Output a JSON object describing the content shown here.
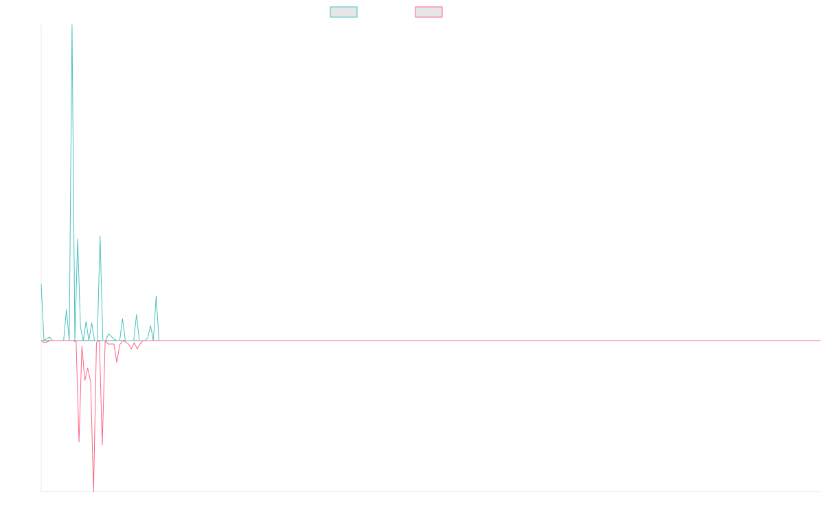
{
  "chart_data": {
    "type": "line",
    "title": "",
    "xlabel": "",
    "ylabel": "",
    "ylim": [
      -220,
      460
    ],
    "grid": false,
    "legend_placement": "top-center",
    "series": [
      {
        "color": "#4bc0c0",
        "fill": "#e6e6e6",
        "values": [
          82,
          0,
          3,
          5,
          0,
          0,
          0,
          0,
          0,
          45,
          0,
          460,
          0,
          148,
          20,
          0,
          28,
          0,
          26,
          0,
          0,
          152,
          0,
          0,
          10,
          6,
          2,
          0,
          0,
          32,
          0,
          0,
          0,
          0,
          38,
          0,
          0,
          0,
          4,
          22,
          0,
          65,
          0,
          0,
          0,
          0,
          0,
          0,
          0,
          0,
          0,
          0,
          0,
          0,
          0,
          0,
          0,
          0,
          0,
          0,
          0,
          0,
          0,
          0,
          0,
          0,
          0,
          0,
          0,
          0,
          0,
          0,
          0,
          0,
          0,
          0,
          0,
          0,
          0,
          0,
          0,
          0,
          0,
          0,
          0,
          0,
          0,
          0,
          0,
          0,
          0,
          0,
          0,
          0,
          0,
          0,
          0,
          0,
          0,
          0,
          0,
          0,
          0,
          0,
          0,
          0,
          0,
          0,
          0,
          0,
          0,
          0,
          0,
          0,
          0,
          0,
          0,
          0,
          0,
          0,
          0,
          0,
          0,
          0,
          0,
          0,
          0,
          0,
          0,
          0,
          0,
          0,
          0,
          0,
          0,
          0,
          0,
          0,
          0,
          0,
          0,
          0,
          0,
          0,
          0,
          0,
          0,
          0,
          0,
          0,
          0,
          0,
          0,
          0,
          0,
          0,
          0,
          0,
          0,
          0,
          0,
          0,
          0,
          0,
          0,
          0,
          0,
          0,
          0,
          0,
          0,
          0,
          0,
          0,
          0,
          0,
          0,
          0,
          0,
          0,
          0,
          0,
          0,
          0,
          0,
          0,
          0,
          0,
          0,
          0,
          0,
          0,
          0,
          0,
          0,
          0,
          0,
          0,
          0,
          0,
          0,
          0,
          0,
          0,
          0,
          0,
          0,
          0,
          0,
          0,
          0,
          0,
          0,
          0,
          0,
          0,
          0,
          0,
          0,
          0,
          0,
          0,
          0,
          0,
          0,
          0,
          0,
          0,
          0,
          0,
          0,
          0,
          0,
          0,
          0,
          0,
          0,
          0,
          0,
          0,
          0,
          0,
          0,
          0,
          0,
          0,
          0,
          0,
          0,
          0,
          0,
          0,
          0,
          0,
          0,
          0,
          0,
          0,
          0,
          0,
          0,
          0,
          0,
          0,
          0,
          0,
          0,
          0,
          0,
          0,
          0,
          0,
          0,
          0,
          0,
          0,
          0,
          0,
          0
        ]
      },
      {
        "color": "#ff6384",
        "fill": "#e6e6e6",
        "values": [
          0,
          -3,
          -2,
          0,
          0,
          0,
          0,
          0,
          0,
          0,
          0,
          0,
          -2,
          -148,
          -8,
          -58,
          -40,
          -60,
          -220,
          -3,
          0,
          -152,
          0,
          -5,
          -5,
          -5,
          -32,
          -6,
          0,
          -2,
          -5,
          -12,
          -3,
          -12,
          -5,
          0,
          0,
          0,
          0,
          0,
          0,
          0,
          0,
          0,
          0,
          0,
          0,
          0,
          0,
          0,
          0,
          0,
          0,
          0,
          0,
          0,
          0,
          0,
          0,
          0,
          0,
          0,
          0,
          0,
          0,
          0,
          0,
          0,
          0,
          0,
          0,
          0,
          0,
          0,
          0,
          0,
          0,
          0,
          0,
          0,
          0,
          0,
          0,
          0,
          0,
          0,
          0,
          0,
          0,
          0,
          0,
          0,
          0,
          0,
          0,
          0,
          0,
          0,
          0,
          0,
          0,
          0,
          0,
          0,
          0,
          0,
          0,
          0,
          0,
          0,
          0,
          0,
          0,
          0,
          0,
          0,
          0,
          0,
          0,
          0,
          0,
          0,
          0,
          0,
          0,
          0,
          0,
          0,
          0,
          0,
          0,
          0,
          0,
          0,
          0,
          0,
          0,
          0,
          0,
          0,
          0,
          0,
          0,
          0,
          0,
          0,
          0,
          0,
          0,
          0,
          0,
          0,
          0,
          0,
          0,
          0,
          0,
          0,
          0,
          0,
          0,
          0,
          0,
          0,
          0,
          0,
          0,
          0,
          0,
          0,
          0,
          0,
          0,
          0,
          0,
          0,
          0,
          0,
          0,
          0,
          0,
          0,
          0,
          0,
          0,
          0,
          0,
          0,
          0,
          0,
          0,
          0,
          0,
          0,
          0,
          0,
          0,
          0,
          0,
          0,
          0,
          0,
          0,
          0,
          0,
          0,
          0,
          0,
          0,
          0,
          0,
          0,
          0,
          0,
          0,
          0,
          0,
          0,
          0,
          0,
          0,
          0,
          0,
          0,
          0,
          0,
          0,
          0,
          0,
          0,
          0,
          0,
          0,
          0,
          0,
          0,
          0,
          0,
          0,
          0,
          0,
          0,
          0,
          0,
          0,
          0,
          0,
          0,
          0,
          0,
          0,
          0,
          0,
          0,
          0,
          0,
          0,
          0,
          0,
          0,
          0,
          0,
          0,
          0,
          0,
          0,
          0,
          0,
          0
        ]
      }
    ]
  }
}
